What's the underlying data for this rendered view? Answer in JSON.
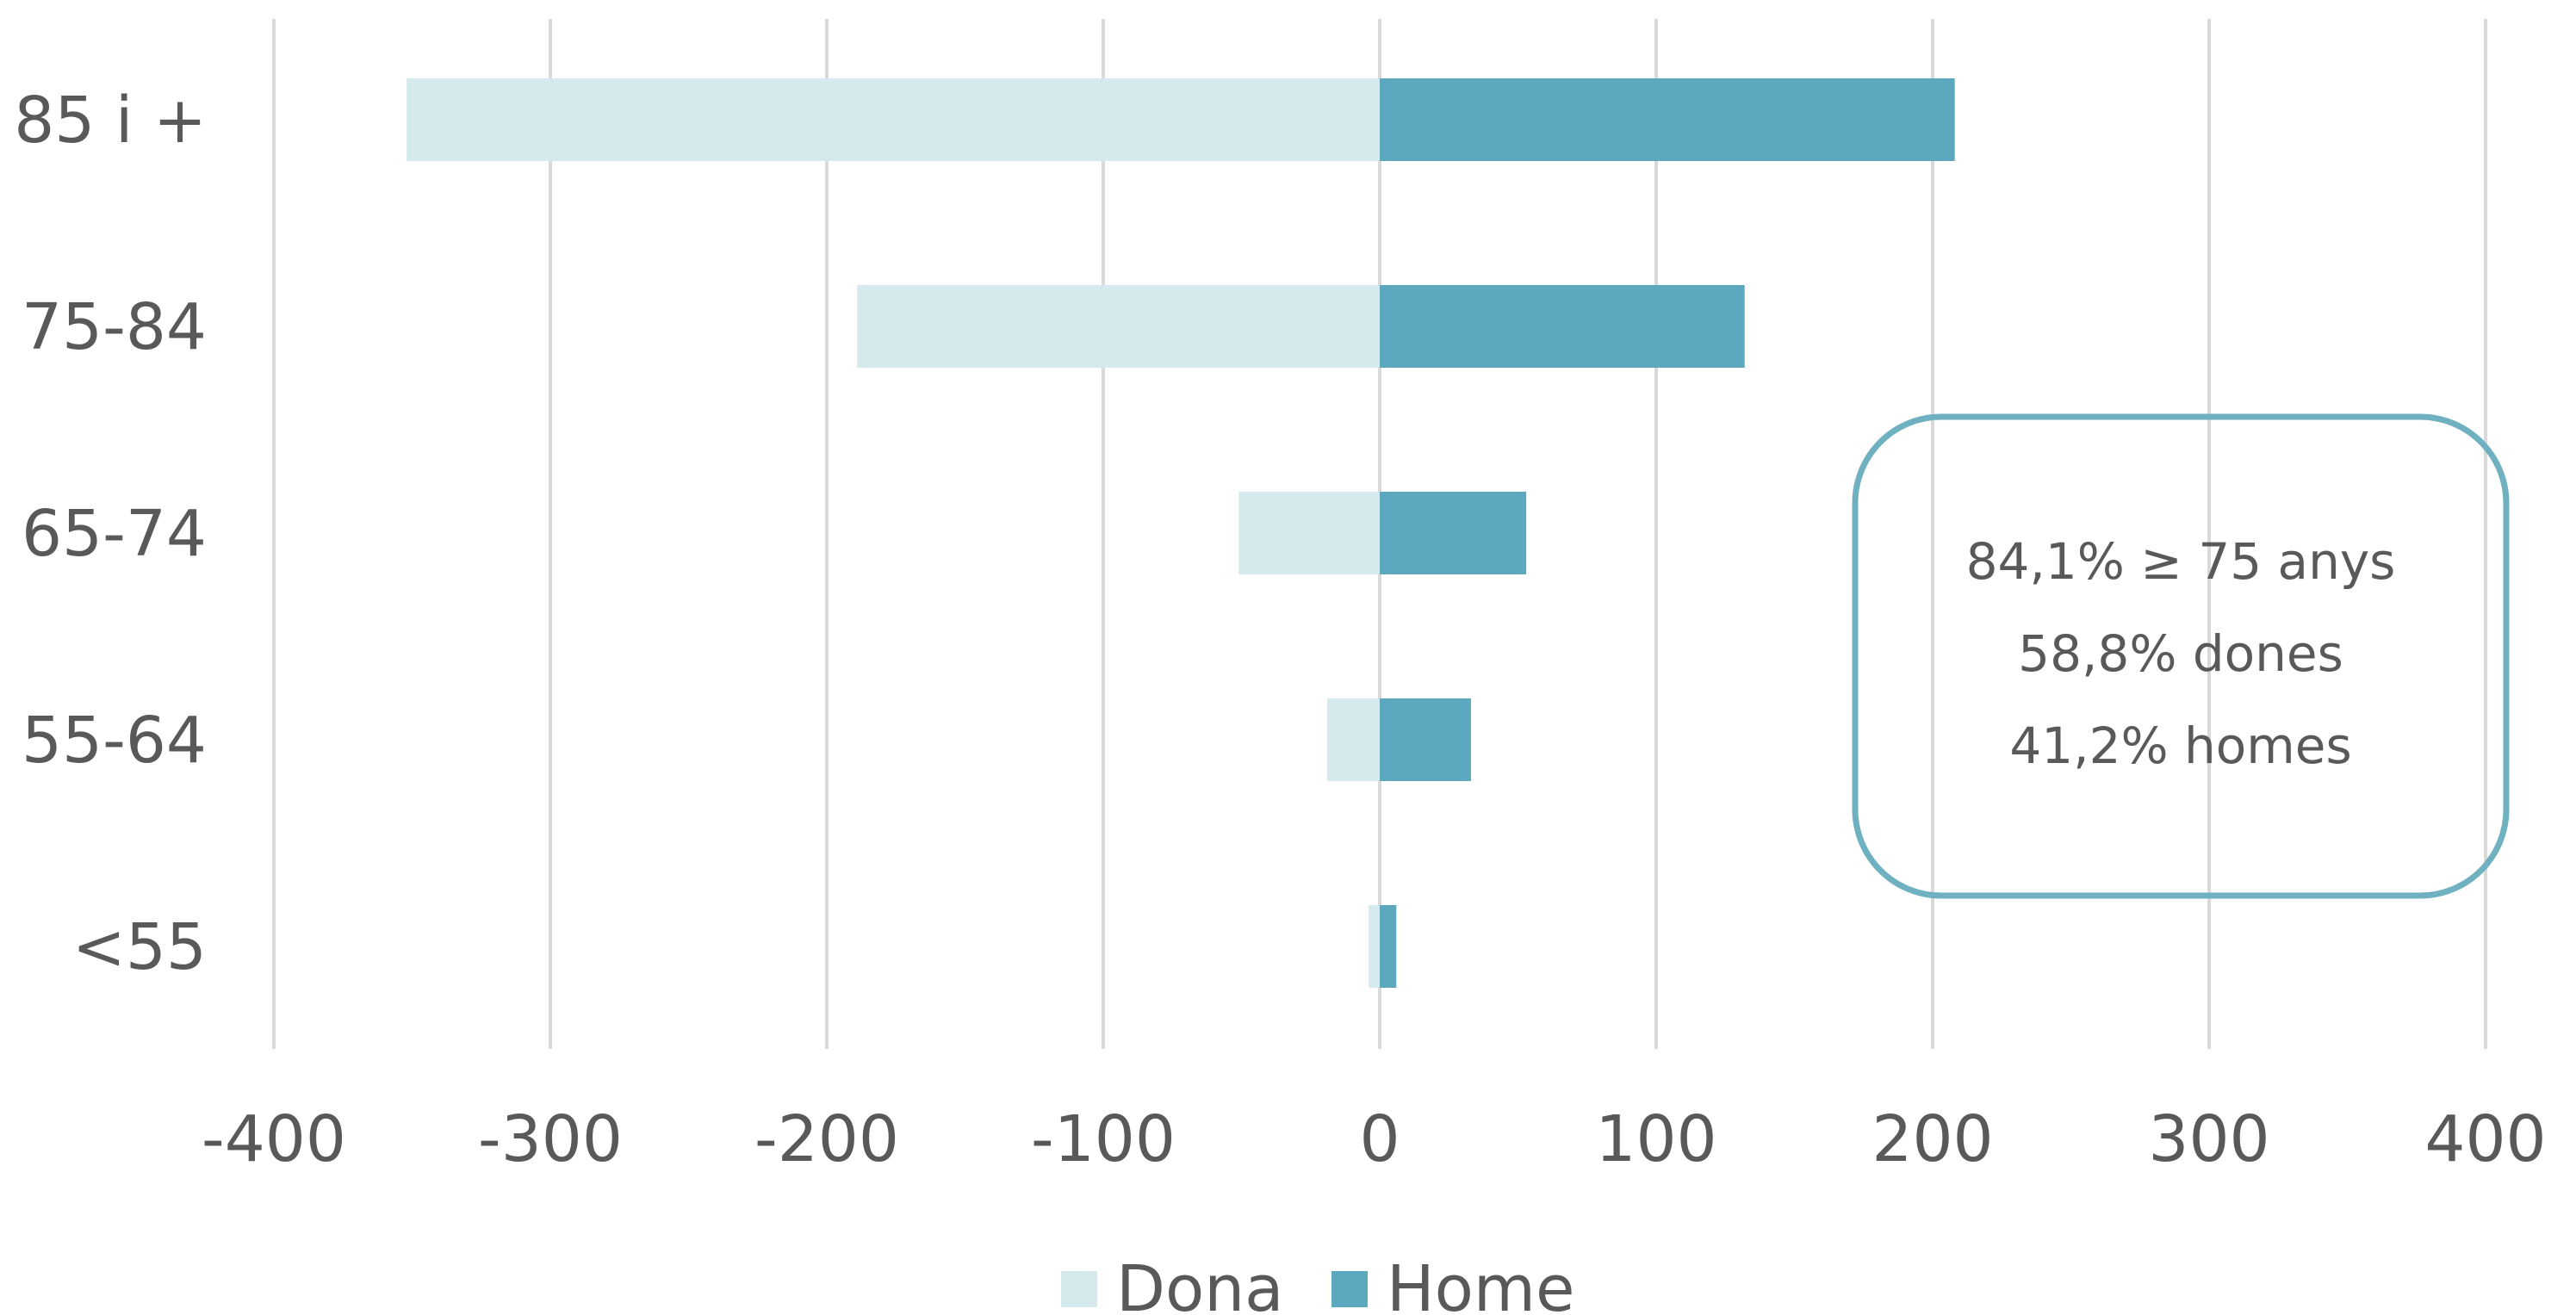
{
  "chart_data": {
    "type": "bar",
    "orientation": "horizontal",
    "categories": [
      "85 i +",
      "75-84",
      "65-74",
      "55-64",
      "<55"
    ],
    "series": [
      {
        "name": "Dona",
        "values": [
          -352,
          -189,
          -51,
          -19,
          -4
        ],
        "color": "#d6eaed"
      },
      {
        "name": "Home",
        "values": [
          208,
          132,
          53,
          33,
          6
        ],
        "color": "#5ca9bf"
      }
    ],
    "xlim": [
      -400,
      400
    ],
    "xticks": [
      -400,
      -300,
      -200,
      -100,
      0,
      100,
      200,
      300,
      400
    ],
    "xtick_labels": [
      "-400",
      "-300",
      "-200",
      "-100",
      "0",
      "100",
      "200",
      "300",
      "400"
    ],
    "grid": "vertical",
    "legend_position": "bottom",
    "annotation": {
      "lines": [
        "84,1% ≥ 75 anys",
        "58,8% dones",
        "41,2% homes"
      ],
      "border_color": "#6fb1c1"
    }
  },
  "colors": {
    "grid": "#d9d9d9",
    "text": "#595959"
  }
}
